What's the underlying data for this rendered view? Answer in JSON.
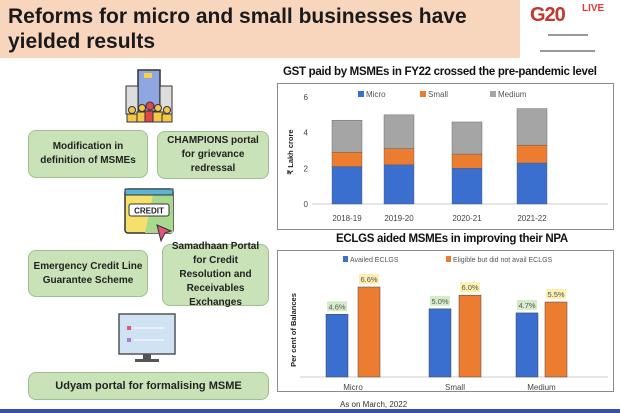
{
  "header": {
    "title": "Reforms for micro and small businesses have yielded results",
    "logo_text": "G20",
    "live_badge": "LIVE"
  },
  "left_panel": {
    "icons": [
      "buildings-people-icon",
      "credit-card-cursor-icon",
      "computer-monitor-icon"
    ],
    "items": [
      {
        "label": "Modification in definition of MSMEs"
      },
      {
        "label": "CHAMPIONS portal for grievance redressal"
      },
      {
        "label": "Emergency Credit Line Guarantee Scheme"
      },
      {
        "label": "Samadhaan Portal for Credit Resolution and Receivables Exchanges"
      },
      {
        "label": "Udyam portal for formalising MSME"
      }
    ],
    "credit_label": "CREDIT",
    "box_color": "#c9e2b8"
  },
  "chart_data": [
    {
      "type": "bar",
      "stacked": true,
      "title": "GST paid by MSMEs in FY22 crossed the pre-pandemic level",
      "ylabel": "₹ Lakh crore",
      "xlabel": "",
      "ylim": [
        0,
        6
      ],
      "yticks": [
        "0",
        "2",
        "4",
        "6"
      ],
      "categories": [
        "2018-19",
        "2019-20",
        "2020-21",
        "2021-22"
      ],
      "legend": "top",
      "series": [
        {
          "name": "Micro",
          "color": "#3a6fd0",
          "values": [
            2.1,
            2.2,
            2.0,
            2.3
          ]
        },
        {
          "name": "Small",
          "color": "#ec7c30",
          "values": [
            0.8,
            0.9,
            0.8,
            1.0
          ]
        },
        {
          "name": "Medium",
          "color": "#a5a5a5",
          "values": [
            1.8,
            1.9,
            1.8,
            2.05
          ]
        }
      ]
    },
    {
      "type": "bar",
      "title": "ECLGS aided MSMEs in improving their NPA",
      "ylabel": "Per cent of Balances",
      "xlabel": "",
      "ylim": [
        0,
        6.6
      ],
      "categories": [
        "Micro",
        "Small",
        "Medium"
      ],
      "legend": "top",
      "series": [
        {
          "name": "Availed ECLGS",
          "color": "#3a6fd0",
          "label_bg": "#d4ecc8",
          "values": [
            4.6,
            5.0,
            4.7
          ],
          "labels": [
            "4.6%",
            "5.0%",
            "4.7%"
          ]
        },
        {
          "name": "Eligible but did not avail ECLGS",
          "color": "#ec7c30",
          "label_bg": "#fbf0b0",
          "values": [
            6.6,
            6.0,
            5.5
          ],
          "labels": [
            "6.6%",
            "6.0%",
            "5.5%"
          ]
        }
      ],
      "note": "As on March, 2022"
    }
  ]
}
